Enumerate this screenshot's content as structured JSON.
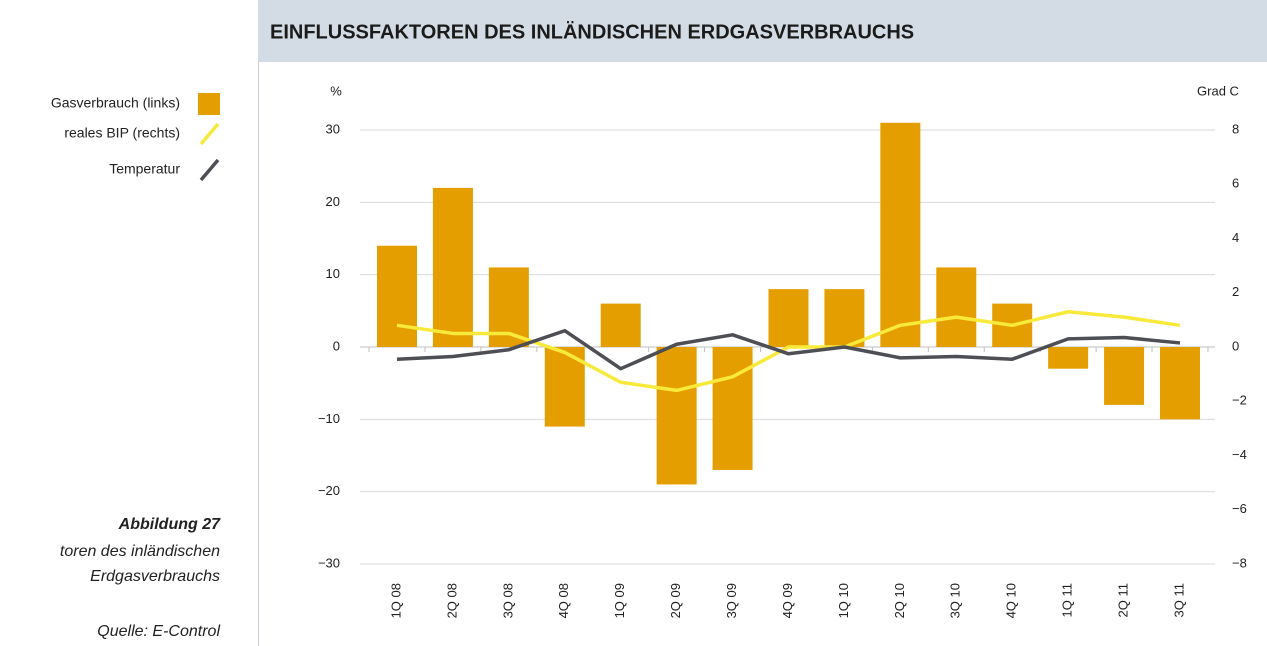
{
  "chart_data": {
    "type": "bar-line",
    "title": "EINFLUSSFAKTOREN DES INLÄNDISCHEN ERDGASVERBRAUCHS",
    "y_label": "%",
    "y2_label": "Grad C",
    "caption": {
      "figure": "Abbildung 27",
      "line1": "toren des inländischen",
      "line2": "Erdgasverbrauchs",
      "source": "Quelle: E-Control"
    },
    "categories": [
      "1Q 08",
      "2Q 08",
      "3Q 08",
      "4Q 08",
      "1Q 09",
      "2Q 09",
      "3Q 09",
      "4Q 09",
      "1Q 10",
      "2Q 10",
      "3Q 10",
      "4Q 10",
      "1Q 11",
      "2Q 11",
      "3Q 11"
    ],
    "series": [
      {
        "name": "Gasverbrauch (links)",
        "color": "#e59e00",
        "kind": "bar",
        "values": [
          14,
          22,
          11,
          -11,
          6,
          -19,
          -17,
          8,
          8,
          31,
          11,
          6,
          -3,
          -8,
          -10
        ]
      },
      {
        "name": "reales BIP (rechts)",
        "color": "#f7ea3a",
        "kind": "line",
        "axis": "y2",
        "values": [
          0.8,
          0.5,
          0.5,
          -0.2,
          -1.3,
          -1.6,
          -1.1,
          0,
          0,
          0.8,
          1.1,
          0.8,
          1.3,
          1.1,
          0.8
        ]
      },
      {
        "name": "Temperatur",
        "color": "#4d4f55",
        "kind": "line",
        "axis": "y2",
        "values": [
          -0.45,
          -0.35,
          -0.1,
          0.6,
          -0.8,
          0.1,
          0.45,
          -0.25,
          0,
          -0.4,
          -0.35,
          -0.45,
          0.3,
          0.35,
          0.15
        ]
      }
    ],
    "ylim": [
      -30,
      30
    ],
    "yticks": [
      {
        "value": -30,
        "label": "−30"
      },
      {
        "value": -20,
        "label": "−20"
      },
      {
        "value": -10,
        "label": "−10"
      },
      0,
      10,
      20,
      30
    ],
    "y2lim": [
      -8,
      8
    ],
    "y2ticks": [
      {
        "value": -8,
        "label": "−8"
      },
      {
        "value": -6,
        "label": "−6"
      },
      {
        "value": -4,
        "label": "−4"
      },
      {
        "value": -2,
        "label": "−2"
      },
      0,
      2,
      4,
      6,
      8
    ],
    "grid": true
  }
}
